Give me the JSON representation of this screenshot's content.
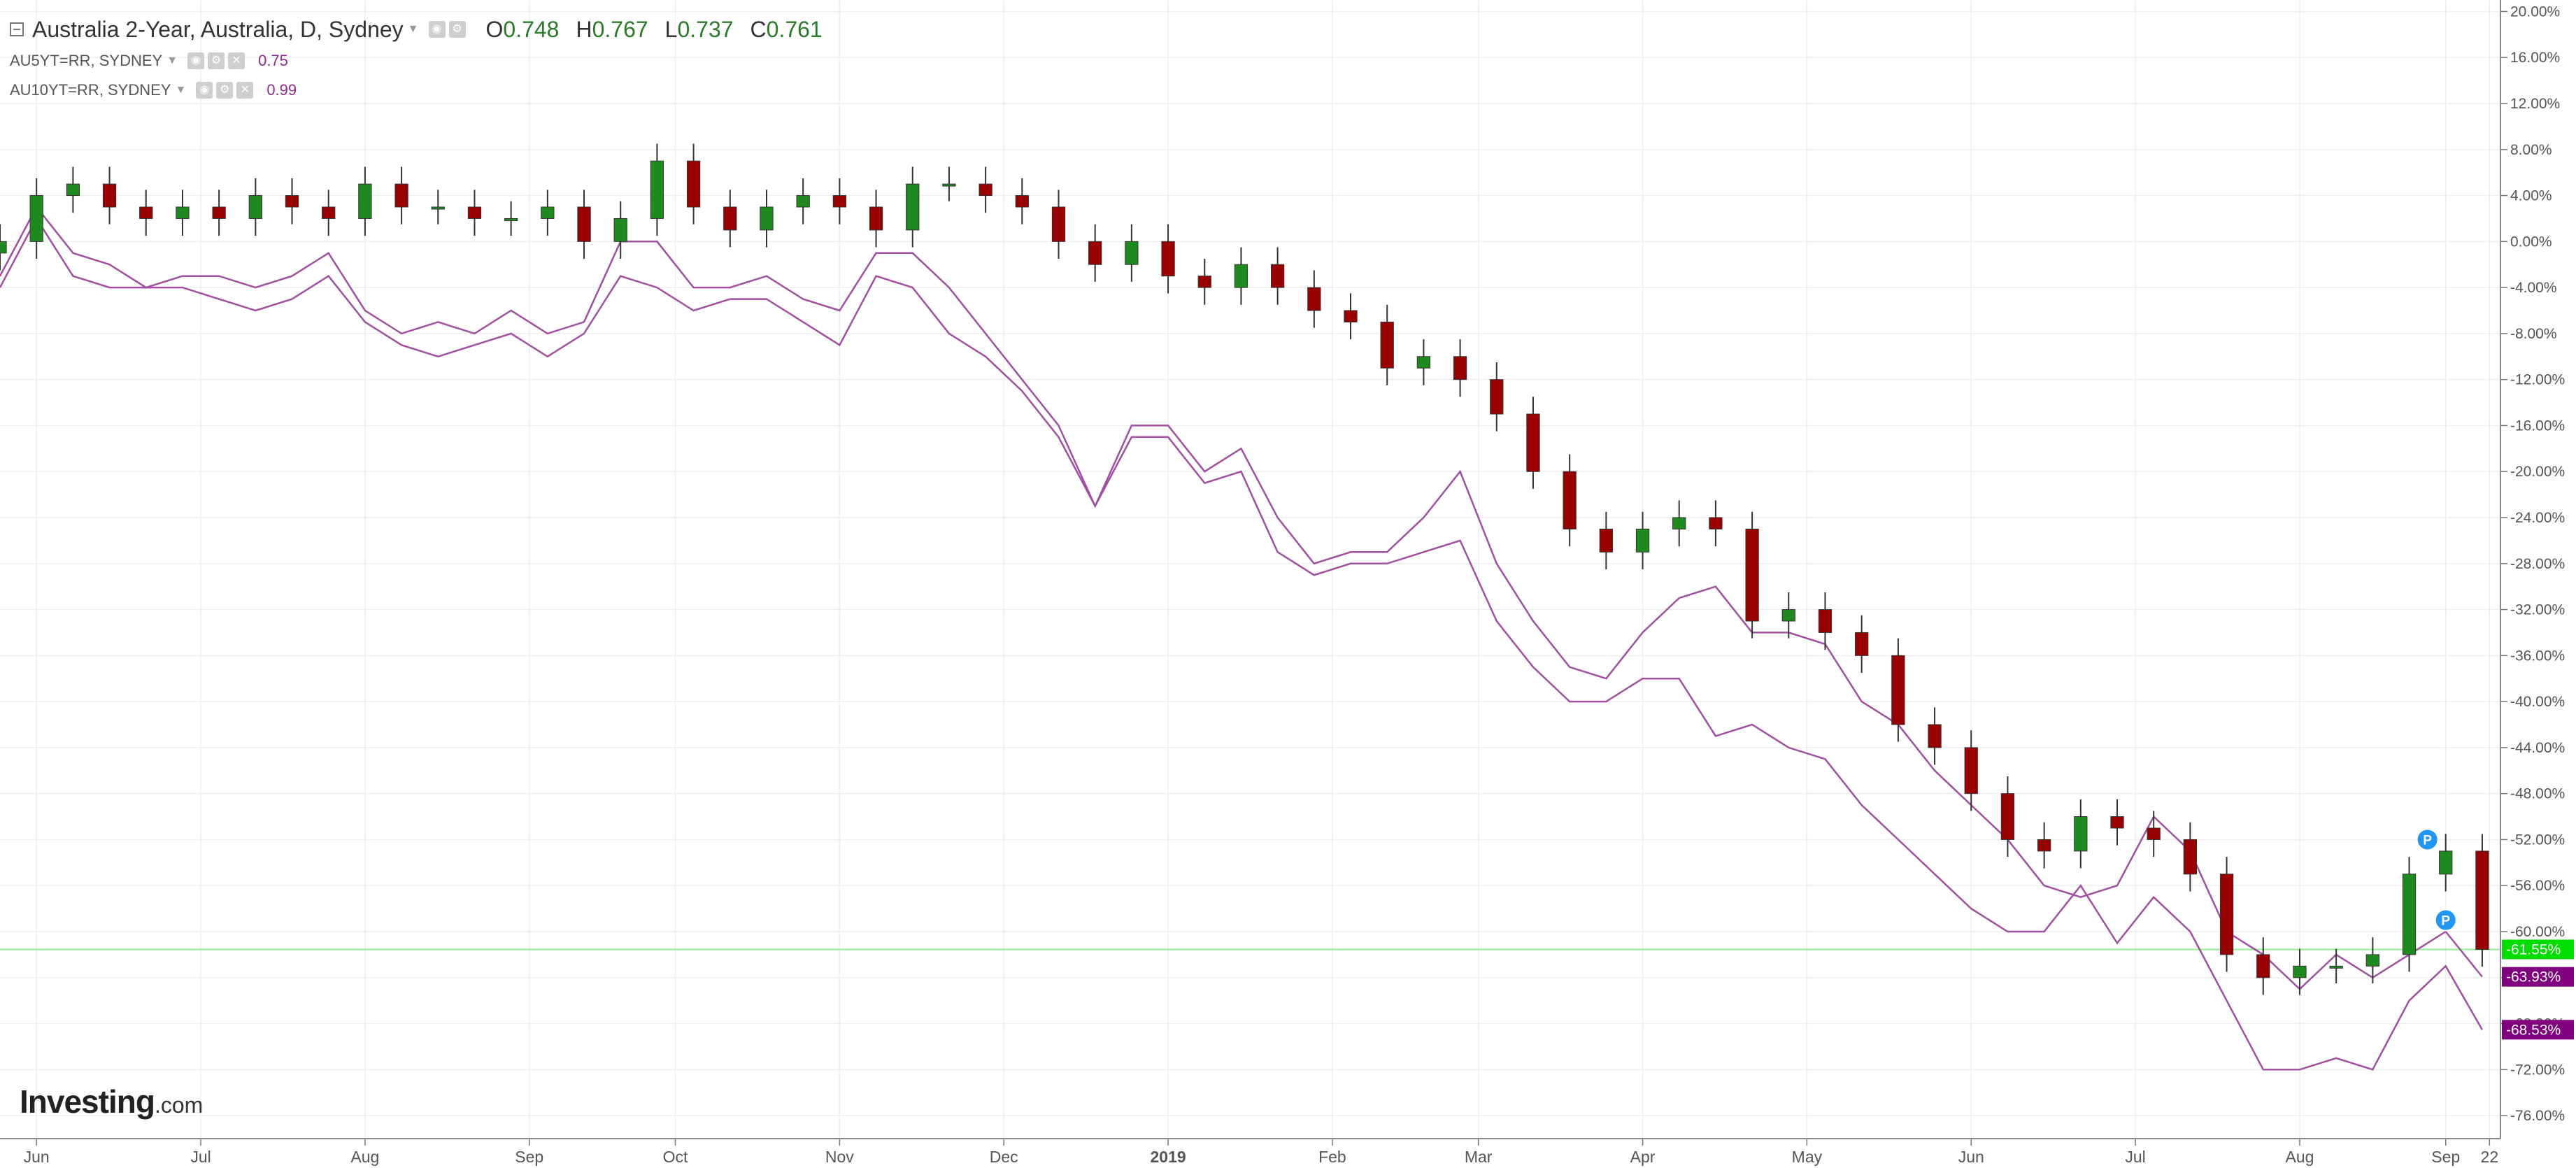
{
  "header": {
    "title": "Australia 2-Year, Australia, D, Sydney",
    "open_label": "O",
    "open": "0.748",
    "high_label": "H",
    "high": "0.767",
    "low_label": "L",
    "low": "0.737",
    "close_label": "C",
    "close": "0.761"
  },
  "overlays": [
    {
      "name": "AU5YT=RR, SYDNEY",
      "value": "0.75"
    },
    {
      "name": "AU10YT=RR, SYDNEY",
      "value": "0.99"
    }
  ],
  "logo": {
    "brand": "Investing",
    "suffix": ".com"
  },
  "chart_data": {
    "type": "line",
    "ylabel_unit": "%",
    "ylim": [
      -78,
      21
    ],
    "yticks": [
      20,
      16,
      12,
      8,
      4,
      0,
      -4,
      -8,
      -12,
      -16,
      -20,
      -24,
      -28,
      -32,
      -36,
      -40,
      -44,
      -48,
      -52,
      -56,
      -60,
      -64,
      -68,
      -72,
      -76
    ],
    "ytick_labels": [
      "20.00%",
      "16.00%",
      "12.00%",
      "8.00%",
      "4.00%",
      "0.00%",
      "-4.00%",
      "-8.00%",
      "-12.00%",
      "-16.00%",
      "-20.00%",
      "-24.00%",
      "-28.00%",
      "-32.00%",
      "-36.00%",
      "-40.00%",
      "-44.00%",
      "-48.00%",
      "-52.00%",
      "-56.00%",
      "-60.00%",
      "-64.00%",
      "-68.00%",
      "-72.00%",
      "-76.00%"
    ],
    "xlim": [
      0,
      68.5
    ],
    "xticks": [
      {
        "pos": 1,
        "label": "Jun",
        "bold": false
      },
      {
        "pos": 5.5,
        "label": "Jul",
        "bold": false
      },
      {
        "pos": 10,
        "label": "Aug",
        "bold": false
      },
      {
        "pos": 14.5,
        "label": "Sep",
        "bold": false
      },
      {
        "pos": 18.5,
        "label": "Oct",
        "bold": false
      },
      {
        "pos": 23,
        "label": "Nov",
        "bold": false
      },
      {
        "pos": 27.5,
        "label": "Dec",
        "bold": false
      },
      {
        "pos": 32,
        "label": "2019",
        "bold": true
      },
      {
        "pos": 36.5,
        "label": "Feb",
        "bold": false
      },
      {
        "pos": 40.5,
        "label": "Mar",
        "bold": false
      },
      {
        "pos": 45,
        "label": "Apr",
        "bold": false
      },
      {
        "pos": 49.5,
        "label": "May",
        "bold": false
      },
      {
        "pos": 54,
        "label": "Jun",
        "bold": false
      },
      {
        "pos": 58.5,
        "label": "Jul",
        "bold": false
      },
      {
        "pos": 63,
        "label": "Aug",
        "bold": false
      },
      {
        "pos": 67,
        "label": "Sep",
        "bold": false
      },
      {
        "pos": 68.2,
        "label": "22",
        "bold": false
      }
    ],
    "current_line": -61.55,
    "price_labels": [
      {
        "value": -61.55,
        "label": "-61.55%",
        "color": "#00dd00"
      },
      {
        "value": -63.93,
        "label": "-63.93%",
        "color": "#800080"
      },
      {
        "value": -68.53,
        "label": "-68.53%",
        "color": "#800080"
      }
    ],
    "markers": [
      {
        "x": 66.5,
        "y": -52,
        "label": "P"
      },
      {
        "x": 67.0,
        "y": -59,
        "label": "P"
      }
    ],
    "colors": {
      "up": "#1f8a1f",
      "down": "#990000",
      "overlay": "#a14fa1",
      "grid": "#eeeeee",
      "current_line": "#8ef08e"
    },
    "series": [
      {
        "name": "Australia 2-Year",
        "type": "candlestick",
        "x": [
          0,
          1,
          2,
          3,
          4,
          5,
          6,
          7,
          8,
          9,
          10,
          11,
          12,
          13,
          14,
          15,
          16,
          17,
          18,
          19,
          20,
          21,
          22,
          23,
          24,
          25,
          26,
          27,
          28,
          29,
          30,
          31,
          32,
          33,
          34,
          35,
          36,
          37,
          38,
          39,
          40,
          41,
          42,
          43,
          44,
          45,
          46,
          47,
          48,
          49,
          50,
          51,
          52,
          53,
          54,
          55,
          56,
          57,
          58,
          59,
          60,
          61,
          62,
          63,
          64,
          65,
          66,
          67,
          68
        ],
        "close": [
          0,
          4,
          5,
          3,
          2,
          3,
          2,
          4,
          3,
          2,
          5,
          3,
          3,
          2,
          2,
          3,
          0,
          2,
          7,
          3,
          1,
          3,
          4,
          3,
          1,
          5,
          5,
          4,
          3,
          0,
          -2,
          0,
          -3,
          -4,
          -2,
          -4,
          -6,
          -7,
          -11,
          -10,
          -12,
          -15,
          -20,
          -25,
          -27,
          -25,
          -24,
          -25,
          -33,
          -32,
          -34,
          -36,
          -42,
          -44,
          -48,
          -52,
          -53,
          -50,
          -51,
          -52,
          -55,
          -62,
          -64,
          -63,
          -63,
          -62,
          -55,
          -53,
          -61.55
        ]
      },
      {
        "name": "AU5YT=RR, SYDNEY",
        "type": "line",
        "x": [
          0,
          1,
          2,
          3,
          4,
          5,
          6,
          7,
          8,
          9,
          10,
          11,
          12,
          13,
          14,
          15,
          16,
          17,
          18,
          19,
          20,
          21,
          22,
          23,
          24,
          25,
          26,
          27,
          28,
          29,
          30,
          31,
          32,
          33,
          34,
          35,
          36,
          37,
          38,
          39,
          40,
          41,
          42,
          43,
          44,
          45,
          46,
          47,
          48,
          49,
          50,
          51,
          52,
          53,
          54,
          55,
          56,
          57,
          58,
          59,
          60,
          61,
          62,
          63,
          64,
          65,
          66,
          67,
          68
        ],
        "values": [
          -3,
          3,
          -1,
          -2,
          -4,
          -3,
          -3,
          -4,
          -3,
          -1,
          -6,
          -8,
          -7,
          -8,
          -6,
          -8,
          -7,
          0,
          0,
          -4,
          -4,
          -3,
          -5,
          -6,
          -1,
          -1,
          -4,
          -8,
          -12,
          -16,
          -23,
          -16,
          -16,
          -20,
          -18,
          -24,
          -28,
          -27,
          -27,
          -24,
          -20,
          -28,
          -33,
          -37,
          -38,
          -34,
          -31,
          -30,
          -34,
          -34,
          -35,
          -40,
          -42,
          -46,
          -49,
          -52,
          -56,
          -57,
          -56,
          -50,
          -53,
          -60,
          -62,
          -65,
          -62,
          -64,
          -62,
          -60,
          -63.93
        ]
      },
      {
        "name": "AU10YT=RR, SYDNEY",
        "type": "line",
        "x": [
          0,
          1,
          2,
          3,
          4,
          5,
          6,
          7,
          8,
          9,
          10,
          11,
          12,
          13,
          14,
          15,
          16,
          17,
          18,
          19,
          20,
          21,
          22,
          23,
          24,
          25,
          26,
          27,
          28,
          29,
          30,
          31,
          32,
          33,
          34,
          35,
          36,
          37,
          38,
          39,
          40,
          41,
          42,
          43,
          44,
          45,
          46,
          47,
          48,
          49,
          50,
          51,
          52,
          53,
          54,
          55,
          56,
          57,
          58,
          59,
          60,
          61,
          62,
          63,
          64,
          65,
          66,
          67,
          68
        ],
        "values": [
          -4,
          2,
          -3,
          -4,
          -4,
          -4,
          -5,
          -6,
          -5,
          -3,
          -7,
          -9,
          -10,
          -9,
          -8,
          -10,
          -8,
          -3,
          -4,
          -6,
          -5,
          -5,
          -7,
          -9,
          -3,
          -4,
          -8,
          -10,
          -13,
          -17,
          -23,
          -17,
          -17,
          -21,
          -20,
          -27,
          -29,
          -28,
          -28,
          -27,
          -26,
          -33,
          -37,
          -40,
          -40,
          -38,
          -38,
          -43,
          -42,
          -44,
          -45,
          -49,
          -52,
          -55,
          -58,
          -60,
          -60,
          -56,
          -61,
          -57,
          -60,
          -66,
          -72,
          -72,
          -71,
          -72,
          -66,
          -63,
          -68.53
        ]
      }
    ]
  }
}
